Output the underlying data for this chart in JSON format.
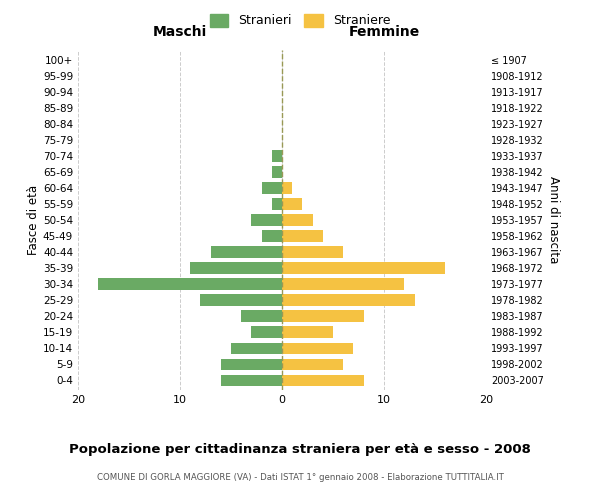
{
  "age_groups": [
    "0-4",
    "5-9",
    "10-14",
    "15-19",
    "20-24",
    "25-29",
    "30-34",
    "35-39",
    "40-44",
    "45-49",
    "50-54",
    "55-59",
    "60-64",
    "65-69",
    "70-74",
    "75-79",
    "80-84",
    "85-89",
    "90-94",
    "95-99",
    "100+"
  ],
  "birth_years": [
    "2003-2007",
    "1998-2002",
    "1993-1997",
    "1988-1992",
    "1983-1987",
    "1978-1982",
    "1973-1977",
    "1968-1972",
    "1963-1967",
    "1958-1962",
    "1953-1957",
    "1948-1952",
    "1943-1947",
    "1938-1942",
    "1933-1937",
    "1928-1932",
    "1923-1927",
    "1918-1922",
    "1913-1917",
    "1908-1912",
    "≤ 1907"
  ],
  "maschi": [
    6,
    6,
    5,
    3,
    4,
    8,
    18,
    9,
    7,
    2,
    3,
    1,
    2,
    1,
    1,
    0,
    0,
    0,
    0,
    0,
    0
  ],
  "femmine": [
    8,
    6,
    7,
    5,
    8,
    13,
    12,
    16,
    6,
    4,
    3,
    2,
    1,
    0,
    0,
    0,
    0,
    0,
    0,
    0,
    0
  ],
  "color_maschi": "#6aaa64",
  "color_femmine": "#f5c242",
  "title_main": "Popolazione per cittadinanza straniera per età e sesso - 2008",
  "title_sub": "COMUNE DI GORLA MAGGIORE (VA) - Dati ISTAT 1° gennaio 2008 - Elaborazione TUTTITALIA.IT",
  "xlabel_left": "Maschi",
  "xlabel_right": "Femmine",
  "ylabel_left": "Fasce di età",
  "ylabel_right": "Anni di nascita",
  "legend_maschi": "Stranieri",
  "legend_femmine": "Straniere",
  "xmax": 20,
  "background_color": "#ffffff",
  "grid_color": "#cccccc"
}
